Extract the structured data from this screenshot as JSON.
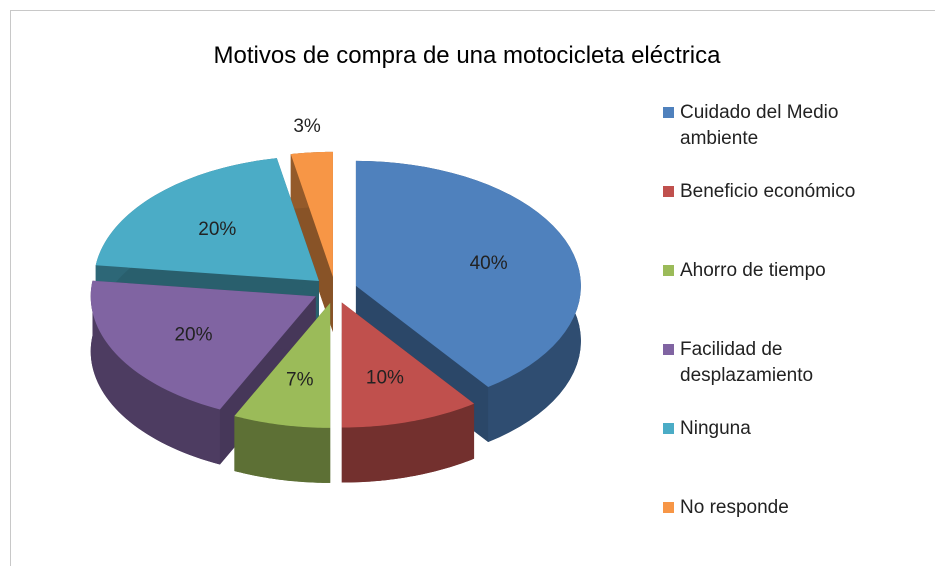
{
  "chart_data": {
    "type": "pie",
    "title": "Motivos de compra de una motocicleta eléctrica",
    "categories": [
      "Cuidado del Medio ambiente",
      "Beneficio económico",
      "Ahorro de tiempo",
      "Facilidad de desplazamiento",
      "Ninguna",
      "No responde"
    ],
    "values": [
      40,
      10,
      7,
      20,
      20,
      3
    ],
    "value_labels": [
      "40%",
      "10%",
      "7%",
      "20%",
      "20%",
      "3%"
    ],
    "colors": [
      "#4f81bd",
      "#c0504d",
      "#9bbb59",
      "#8064a2",
      "#4bacc6",
      "#f79646"
    ],
    "legend": "right"
  }
}
